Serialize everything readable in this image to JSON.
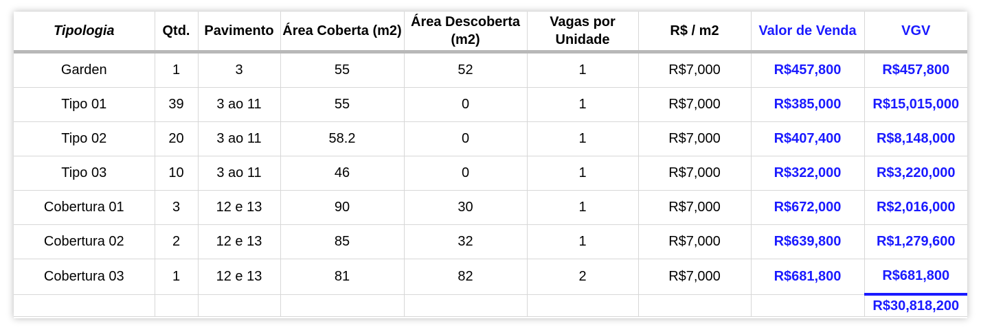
{
  "headers": {
    "tipologia": "Tipologia",
    "qtd": "Qtd.",
    "pavimento": "Pavimento",
    "area_coberta": "Área Coberta (m2)",
    "area_descoberta": "Área Descoberta (m2)",
    "vagas": "Vagas por Unidade",
    "rs_m2": "R$ / m2",
    "valor_venda": "Valor de Venda",
    "vgv": "VGV"
  },
  "rows": [
    {
      "tipologia": "Garden",
      "qtd": "1",
      "pavimento": "3",
      "area_coberta": "55",
      "area_descoberta": "52",
      "vagas": "1",
      "rs_m2": "R$7,000",
      "valor_venda": "R$457,800",
      "vgv": "R$457,800"
    },
    {
      "tipologia": "Tipo 01",
      "qtd": "39",
      "pavimento": "3 ao 11",
      "area_coberta": "55",
      "area_descoberta": "0",
      "vagas": "1",
      "rs_m2": "R$7,000",
      "valor_venda": "R$385,000",
      "vgv": "R$15,015,000"
    },
    {
      "tipologia": "Tipo 02",
      "qtd": "20",
      "pavimento": "3 ao 11",
      "area_coberta": "58.2",
      "area_descoberta": "0",
      "vagas": "1",
      "rs_m2": "R$7,000",
      "valor_venda": "R$407,400",
      "vgv": "R$8,148,000"
    },
    {
      "tipologia": "Tipo 03",
      "qtd": "10",
      "pavimento": "3 ao 11",
      "area_coberta": "46",
      "area_descoberta": "0",
      "vagas": "1",
      "rs_m2": "R$7,000",
      "valor_venda": "R$322,000",
      "vgv": "R$3,220,000"
    },
    {
      "tipologia": "Cobertura 01",
      "qtd": "3",
      "pavimento": "12 e 13",
      "area_coberta": "90",
      "area_descoberta": "30",
      "vagas": "1",
      "rs_m2": "R$7,000",
      "valor_venda": "R$672,000",
      "vgv": "R$2,016,000"
    },
    {
      "tipologia": "Cobertura 02",
      "qtd": "2",
      "pavimento": "12 e 13",
      "area_coberta": "85",
      "area_descoberta": "32",
      "vagas": "1",
      "rs_m2": "R$7,000",
      "valor_venda": "R$639,800",
      "vgv": "R$1,279,600"
    },
    {
      "tipologia": "Cobertura 03",
      "qtd": "1",
      "pavimento": "12 e 13",
      "area_coberta": "81",
      "area_descoberta": "82",
      "vagas": "2",
      "rs_m2": "R$7,000",
      "valor_venda": "R$681,800",
      "vgv": "R$681,800"
    }
  ],
  "total_vgv": "R$30,818,200",
  "colors": {
    "accent_blue": "#1a1aff",
    "grid_line": "#d7d7d7",
    "header_rule": "#b8b8b8"
  }
}
